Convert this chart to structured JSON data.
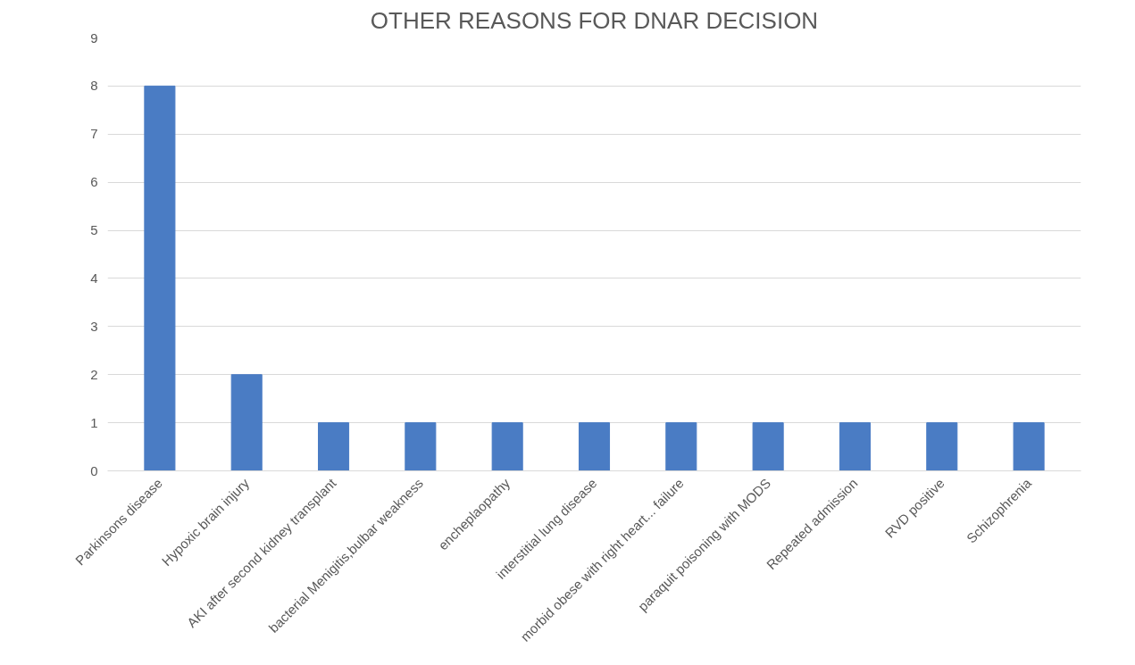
{
  "chart_data": {
    "type": "bar",
    "title": "OTHER REASONS FOR DNAR DECISION",
    "categories": [
      "Parkinsons disease",
      "Hypoxic brain injury",
      "AKI after second kidney transplant",
      "bacterial Menigitis,bulbar weakness",
      "encheplaopathy",
      "interstitial lung disease",
      "morbid obese with right heart... failure",
      "paraquit poisoning with MODS",
      "Repeated admission",
      "RVD positive",
      "Schizophrenia"
    ],
    "values": [
      8,
      2,
      1,
      1,
      1,
      1,
      1,
      1,
      1,
      1,
      1
    ],
    "color": "#4a7cc4",
    "ylim": [
      0,
      9
    ],
    "yticks": [
      0,
      1,
      2,
      3,
      4,
      5,
      6,
      7,
      8,
      9
    ],
    "grid": "y"
  }
}
